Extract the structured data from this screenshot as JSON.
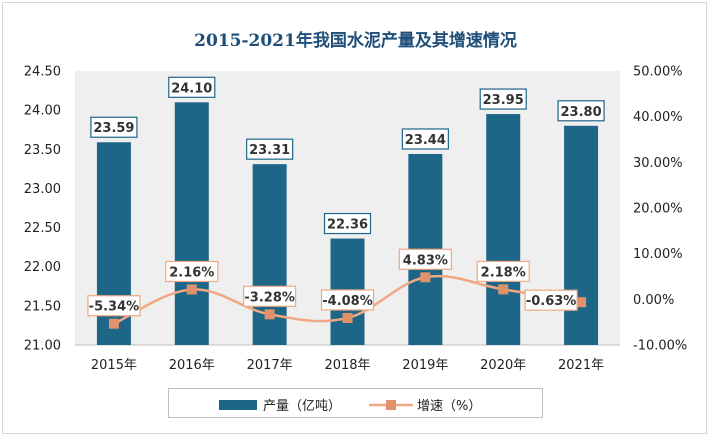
{
  "chart_data": {
    "type": "bar+line",
    "title": "2015-2021年我国水泥产量及其增速情况",
    "categories": [
      "2015年",
      "2016年",
      "2017年",
      "2018年",
      "2019年",
      "2020年",
      "2021年"
    ],
    "series": [
      {
        "name": "产量（亿吨）",
        "type": "bar",
        "axis": "left",
        "values": [
          23.59,
          24.1,
          23.31,
          22.36,
          23.44,
          23.95,
          23.8
        ],
        "labels": [
          "23.59",
          "24.10",
          "23.31",
          "22.36",
          "23.44",
          "23.95",
          "23.80"
        ]
      },
      {
        "name": "增速（%）",
        "type": "line",
        "axis": "right",
        "values": [
          -5.34,
          2.16,
          -3.28,
          -4.08,
          4.83,
          2.18,
          -0.63
        ],
        "labels": [
          "-5.34%",
          "2.16%",
          "-3.28%",
          "-4.08%",
          "4.83%",
          "2.18%",
          "-0.63%"
        ]
      }
    ],
    "left_axis": {
      "ylim": [
        21.0,
        24.5
      ],
      "ticks": [
        "21.00",
        "21.50",
        "22.00",
        "22.50",
        "23.00",
        "23.50",
        "24.00",
        "24.50"
      ]
    },
    "right_axis": {
      "ylim": [
        -10,
        50
      ],
      "ticks": [
        "-10.00%",
        "0.00%",
        "10.00%",
        "20.00%",
        "30.00%",
        "40.00%",
        "50.00%"
      ]
    },
    "grid": false,
    "legend": "bottom-center",
    "colors": {
      "bar": "#1d6688",
      "line": "#f0a882",
      "marker": "#e0926b",
      "title": "#1f4e79",
      "plot_bg": "#efefef"
    }
  }
}
